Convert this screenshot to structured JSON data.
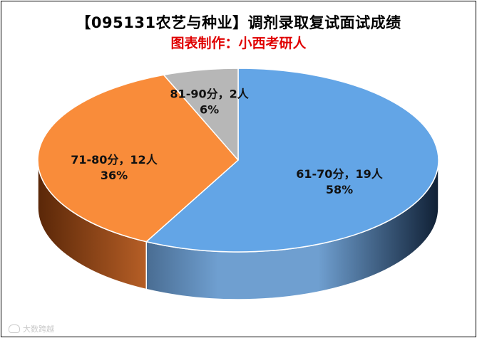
{
  "title": "【095131农艺与种业】调剂录取复试面试成绩",
  "subtitle": "图表制作：小西考研人",
  "watermark": "大数跨越",
  "chart_data": {
    "type": "pie",
    "style": "3d",
    "title": "【095131农艺与种业】调剂录取复试面试成绩",
    "subtitle": "图表制作：小西考研人",
    "slices": [
      {
        "category": "61-70分",
        "count": 19,
        "percent": 58,
        "label": "61-70分，19人",
        "pct_label": "58%",
        "color": "#63a5e6",
        "side_light": "#6f9fd0",
        "side_dark": "#102035"
      },
      {
        "category": "71-80分",
        "count": 12,
        "percent": 36,
        "label": "71-80分，12人",
        "pct_label": "36%",
        "color": "#f98c3a",
        "side_light": "#f3833a",
        "side_dark": "#5a2708"
      },
      {
        "category": "81-90分",
        "count": 2,
        "percent": 6,
        "label": "81-90分，2人",
        "pct_label": "6%",
        "color": "#b7b7b7",
        "side_light": "#b0b0b0",
        "side_dark": "#555555"
      }
    ],
    "legend": "none"
  }
}
